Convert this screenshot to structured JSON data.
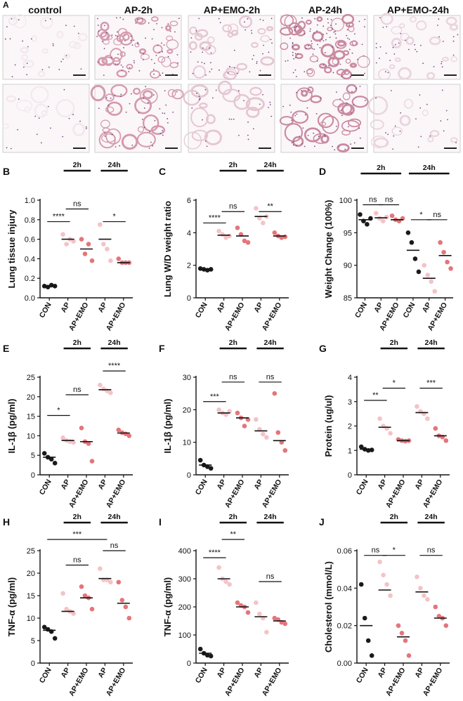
{
  "figure_label_A": "A",
  "histology": {
    "columns": [
      "control",
      "AP-2h",
      "AP+EMO-2h",
      "AP-24h",
      "AP+EMO-24h"
    ],
    "tissue_colors": [
      "#f2e8ee",
      "#d49aad",
      "#e4c6d1",
      "#c98aa0",
      "#e9d4dd"
    ]
  },
  "colors": {
    "control": "#1a1a1a",
    "ap_2h": "#f4c3c7",
    "emo_2h": "#e4757a",
    "ap_24h": "#f4c3c7",
    "emo_24h": "#e4757a"
  },
  "chart_data": [
    {
      "panel": "B",
      "type": "scatter",
      "ylabel": "Lung tissue injury",
      "ylim": [
        0,
        1.0
      ],
      "yticks": [
        "0.0",
        "0.2",
        "0.4",
        "0.6",
        "0.8",
        "1.0"
      ],
      "categories": [
        "CON",
        "AP",
        "AP+EMO",
        "AP",
        "AP+EMO"
      ],
      "group_headers": [
        {
          "text": "2h",
          "from": 1,
          "to": 2
        },
        {
          "text": "24h",
          "from": 3,
          "to": 4
        }
      ],
      "groups": [
        {
          "mean": 0.12,
          "points": [
            0.12,
            0.11,
            0.13,
            0.12
          ]
        },
        {
          "mean": 0.6,
          "points": [
            0.65,
            0.55,
            0.6,
            0.58
          ]
        },
        {
          "mean": 0.5,
          "points": [
            0.6,
            0.45,
            0.55,
            0.38
          ]
        },
        {
          "mean": 0.6,
          "points": [
            0.75,
            0.55,
            0.5,
            0.38
          ]
        },
        {
          "mean": 0.36,
          "points": [
            0.4,
            0.36,
            0.36,
            0.36
          ]
        }
      ],
      "sig": [
        {
          "from": 0,
          "to": 1,
          "label": "****",
          "y": 0.78
        },
        {
          "from": 1,
          "to": 2,
          "label": "ns",
          "y": 0.91
        },
        {
          "from": 3,
          "to": 4,
          "label": "*",
          "y": 0.78
        }
      ]
    },
    {
      "panel": "C",
      "type": "scatter",
      "ylabel": "Lung W/D weight ratio",
      "ylim": [
        0,
        6
      ],
      "yticks": [
        "0",
        "2",
        "4",
        "6"
      ],
      "categories": [
        "CON",
        "AP",
        "AP+EMO",
        "AP",
        "AP+EMO"
      ],
      "group_headers": [
        {
          "text": "2h",
          "from": 1,
          "to": 2
        },
        {
          "text": "24h",
          "from": 3,
          "to": 4
        }
      ],
      "groups": [
        {
          "mean": 1.75,
          "points": [
            1.8,
            1.75,
            1.7,
            1.75
          ]
        },
        {
          "mean": 3.85,
          "points": [
            4.1,
            3.9,
            3.7,
            3.8
          ]
        },
        {
          "mean": 3.8,
          "points": [
            4.3,
            3.9,
            3.5,
            3.4
          ]
        },
        {
          "mean": 5.0,
          "points": [
            5.5,
            4.9,
            4.6,
            5.0
          ]
        },
        {
          "mean": 3.8,
          "points": [
            4.0,
            3.8,
            3.7,
            3.75
          ]
        }
      ],
      "sig": [
        {
          "from": 0,
          "to": 1,
          "label": "****",
          "y": 4.6
        },
        {
          "from": 1,
          "to": 2,
          "label": "ns",
          "y": 5.3
        },
        {
          "from": 3,
          "to": 4,
          "label": "**",
          "y": 5.3
        }
      ]
    },
    {
      "panel": "D",
      "type": "scatter",
      "ylabel": "Weight Change (100%)",
      "ylim": [
        85,
        100
      ],
      "yticks": [
        "85",
        "90",
        "95",
        "100"
      ],
      "categories": [
        "CON",
        "AP",
        "AP+EMO",
        "CON",
        "AP",
        "AP+EMO"
      ],
      "group_headers": [
        {
          "text": "2h",
          "from": 0,
          "to": 2
        },
        {
          "text": "24h",
          "from": 3,
          "to": 5
        }
      ],
      "groups": [
        {
          "mean": 97.0,
          "points": [
            97.8,
            96.8,
            96.3,
            97.2
          ]
        },
        {
          "mean": 97.3,
          "points": [
            98.0,
            97.2,
            96.8,
            97.4
          ]
        },
        {
          "mean": 97.0,
          "points": [
            97.6,
            97.0,
            96.8,
            97.2
          ]
        },
        {
          "mean": 92.3,
          "points": [
            95.0,
            93.5,
            91.0,
            89.0
          ]
        },
        {
          "mean": 88.0,
          "points": [
            90.0,
            88.5,
            87.5,
            86.0
          ]
        },
        {
          "mean": 91.5,
          "points": [
            93.5,
            92.0,
            90.5,
            89.5
          ]
        }
      ],
      "sig": [
        {
          "from": 0,
          "to": 1,
          "label": "ns",
          "y": 99.3
        },
        {
          "from": 1,
          "to": 2,
          "label": "ns",
          "y": 99.3
        },
        {
          "from": 3,
          "to": 4,
          "label": "*",
          "y": 97.0
        },
        {
          "from": 4,
          "to": 5,
          "label": "ns",
          "y": 97.0
        }
      ]
    },
    {
      "panel": "E",
      "type": "scatter",
      "ylabel": "IL-1β (pg/ml)",
      "ylim": [
        0,
        25
      ],
      "yticks": [
        "0",
        "5",
        "10",
        "15",
        "20",
        "25"
      ],
      "categories": [
        "CON",
        "AP",
        "AP+EMO",
        "AP",
        "AP+EMO"
      ],
      "group_headers": [
        {
          "text": "2h",
          "from": 1,
          "to": 2
        },
        {
          "text": "24h",
          "from": 3,
          "to": 4
        }
      ],
      "groups": [
        {
          "mean": 4.5,
          "points": [
            5.5,
            4.5,
            4.0,
            3.0
          ]
        },
        {
          "mean": 8.8,
          "points": [
            9.5,
            8.8,
            8.5,
            8.3
          ]
        },
        {
          "mean": 8.5,
          "points": [
            12.0,
            8.5,
            8.0,
            3.5
          ]
        },
        {
          "mean": 21.8,
          "points": [
            23.0,
            22.0,
            21.5,
            21.0
          ]
        },
        {
          "mean": 10.7,
          "points": [
            11.5,
            10.8,
            10.5,
            10.0
          ]
        }
      ],
      "sig": [
        {
          "from": 0,
          "to": 1,
          "label": "*",
          "y": 15.2
        },
        {
          "from": 1,
          "to": 2,
          "label": "ns",
          "y": 20.5
        },
        {
          "from": 3,
          "to": 4,
          "label": "****",
          "y": 26.6
        }
      ]
    },
    {
      "panel": "F",
      "type": "scatter",
      "ylabel": "IL-1β (pg/ml)",
      "ylim": [
        0,
        30
      ],
      "yticks": [
        "0",
        "10",
        "20",
        "30"
      ],
      "categories": [
        "CON",
        "AP",
        "AP+EMO",
        "AP",
        "AP+EMO"
      ],
      "group_headers": [
        {
          "text": "2h",
          "from": 1,
          "to": 2
        },
        {
          "text": "24h",
          "from": 3,
          "to": 4
        }
      ],
      "groups": [
        {
          "mean": 3.0,
          "points": [
            4.5,
            3.0,
            2.5,
            2.0
          ]
        },
        {
          "mean": 19.0,
          "points": [
            20.0,
            19.0,
            18.5,
            19.5
          ]
        },
        {
          "mean": 17.5,
          "points": [
            19.0,
            17.5,
            15.0,
            17.0
          ]
        },
        {
          "mean": 13.5,
          "points": [
            17.0,
            14.0,
            12.5,
            11.5
          ]
        },
        {
          "mean": 10.5,
          "points": [
            25.0,
            13.0,
            10.0,
            7.5
          ]
        }
      ],
      "sig": [
        {
          "from": 0,
          "to": 1,
          "label": "***",
          "y": 22.5
        },
        {
          "from": 1,
          "to": 2,
          "label": "ns",
          "y": 28.5
        },
        {
          "from": 3,
          "to": 4,
          "label": "ns",
          "y": 28.5
        }
      ]
    },
    {
      "panel": "G",
      "type": "scatter",
      "ylabel": "Protein (ug/ul)",
      "ylim": [
        0,
        4
      ],
      "yticks": [
        "0",
        "1",
        "2",
        "3",
        "4"
      ],
      "categories": [
        "CON",
        "AP",
        "AP+EMO",
        "AP",
        "AP+EMO"
      ],
      "group_headers": [
        {
          "text": "2h",
          "from": 1,
          "to": 2
        },
        {
          "text": "24h",
          "from": 3,
          "to": 4
        }
      ],
      "groups": [
        {
          "mean": 1.05,
          "points": [
            1.15,
            1.05,
            1.0,
            1.02
          ]
        },
        {
          "mean": 1.95,
          "points": [
            2.3,
            2.0,
            1.9,
            1.7
          ]
        },
        {
          "mean": 1.4,
          "points": [
            1.45,
            1.4,
            1.38,
            1.4
          ]
        },
        {
          "mean": 2.55,
          "points": [
            2.8,
            2.6,
            2.5,
            2.3
          ]
        },
        {
          "mean": 1.6,
          "points": [
            1.9,
            1.6,
            1.55,
            1.4
          ]
        }
      ],
      "sig": [
        {
          "from": 0,
          "to": 1,
          "label": "**",
          "y": 3.05
        },
        {
          "from": 1,
          "to": 2,
          "label": "*",
          "y": 3.55
        },
        {
          "from": 3,
          "to": 4,
          "label": "***",
          "y": 3.55
        }
      ]
    },
    {
      "panel": "H",
      "type": "scatter",
      "ylabel": "TNF-α  (pg/ml)",
      "ylim": [
        0,
        25
      ],
      "yticks": [
        "0",
        "5",
        "10",
        "15",
        "20",
        "25"
      ],
      "categories": [
        "CON",
        "AP",
        "AP+EMO",
        "AP",
        "AP+EMO"
      ],
      "group_headers": [
        {
          "text": "2h",
          "from": 1,
          "to": 2
        },
        {
          "text": "24h",
          "from": 3,
          "to": 4
        }
      ],
      "groups": [
        {
          "mean": 7.3,
          "points": [
            8.0,
            7.5,
            7.0,
            5.5
          ]
        },
        {
          "mean": 11.5,
          "points": [
            15.5,
            12.0,
            11.5,
            11.0
          ]
        },
        {
          "mean": 14.5,
          "points": [
            17.0,
            15.0,
            14.5,
            12.0
          ]
        },
        {
          "mean": 18.8,
          "points": [
            21.0,
            18.5,
            18.5,
            18.0
          ]
        },
        {
          "mean": 13.3,
          "points": [
            18.0,
            14.0,
            12.5,
            10.0
          ]
        }
      ],
      "sig": [
        {
          "from": 0,
          "to": 3,
          "label": "***",
          "y": 27.5
        },
        {
          "from": 1,
          "to": 2,
          "label": "ns",
          "y": 21.8
        },
        {
          "from": 3,
          "to": 4,
          "label": "ns",
          "y": 25.0
        }
      ]
    },
    {
      "panel": "I",
      "type": "scatter",
      "ylabel": "TNF-α (pg/ml)",
      "ylim": [
        0,
        400
      ],
      "yticks": [
        "0",
        "100",
        "200",
        "300",
        "400"
      ],
      "categories": [
        "CON",
        "AP",
        "AP+EMO",
        "AP",
        "AP+EMO"
      ],
      "group_headers": [
        {
          "text": "2h",
          "from": 1,
          "to": 2
        },
        {
          "text": "24h",
          "from": 3,
          "to": 4
        }
      ],
      "groups": [
        {
          "mean": 35,
          "points": [
            50,
            35,
            28,
            25
          ]
        },
        {
          "mean": 300,
          "points": [
            340,
            300,
            290,
            280
          ]
        },
        {
          "mean": 200,
          "points": [
            215,
            205,
            200,
            180
          ]
        },
        {
          "mean": 165,
          "points": [
            215,
            175,
            160,
            110
          ]
        },
        {
          "mean": 150,
          "points": [
            160,
            155,
            145,
            140
          ]
        }
      ],
      "sig": [
        {
          "from": 0,
          "to": 1,
          "label": "****",
          "y": 375
        },
        {
          "from": 1,
          "to": 2,
          "label": "**",
          "y": 440
        },
        {
          "from": 3,
          "to": 4,
          "label": "ns",
          "y": 290
        }
      ]
    },
    {
      "panel": "J",
      "type": "scatter",
      "ylabel": "Cholesterol (mmol/L)",
      "ylim": [
        0,
        0.06
      ],
      "yticks": [
        "0.00",
        "0.02",
        "0.04",
        "0.06"
      ],
      "categories": [
        "CON",
        "AP",
        "AP+EMO",
        "AP",
        "AP+EMO"
      ],
      "group_headers": [
        {
          "text": "2h",
          "from": 1,
          "to": 2
        },
        {
          "text": "24h",
          "from": 3,
          "to": 4
        }
      ],
      "groups": [
        {
          "mean": 0.02,
          "points": [
            0.042,
            0.024,
            0.012,
            0.004
          ]
        },
        {
          "mean": 0.039,
          "points": [
            0.054,
            0.047,
            0.042,
            0.036
          ]
        },
        {
          "mean": 0.014,
          "points": [
            0.02,
            0.016,
            0.012,
            0.004
          ]
        },
        {
          "mean": 0.038,
          "points": [
            0.046,
            0.04,
            0.036,
            0.034
          ]
        },
        {
          "mean": 0.024,
          "points": [
            0.03,
            0.025,
            0.024,
            0.02
          ]
        }
      ],
      "sig": [
        {
          "from": 0,
          "to": 1,
          "label": "ns",
          "y": 0.0575
        },
        {
          "from": 1,
          "to": 2,
          "label": "*",
          "y": 0.0575
        },
        {
          "from": 3,
          "to": 4,
          "label": "ns",
          "y": 0.0575
        }
      ]
    }
  ]
}
